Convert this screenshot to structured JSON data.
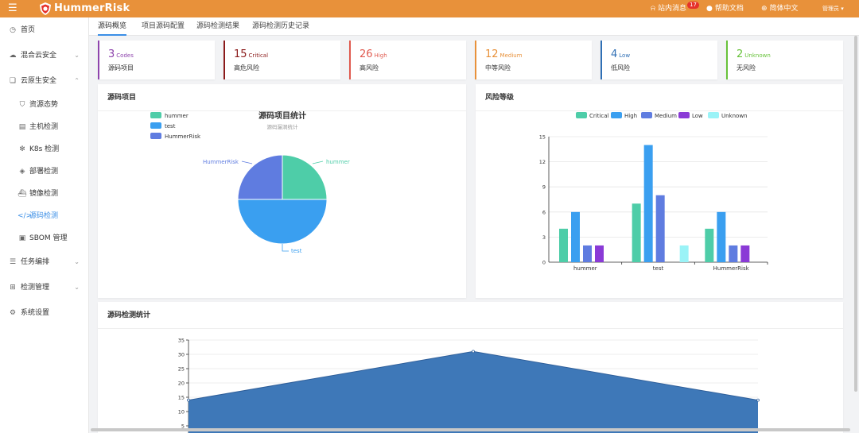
{
  "header": {
    "brand": "HummerRisk",
    "messages_label": "站内消息",
    "messages_count": "17",
    "help_label": "帮助文档",
    "language_label": "简体中文",
    "user_label": "管理员"
  },
  "sidebar": {
    "items": [
      {
        "label": "首页",
        "icon": "clock-icon"
      },
      {
        "label": "混合云安全",
        "icon": "cloud-icon"
      },
      {
        "label": "云原生安全",
        "icon": "cloud-native-icon"
      },
      {
        "label": "资源态势",
        "icon": "shield-icon"
      },
      {
        "label": "主机检测",
        "icon": "server-icon"
      },
      {
        "label": "K8s 检测",
        "icon": "k8s-icon"
      },
      {
        "label": "部署检测",
        "icon": "layers-icon"
      },
      {
        "label": "镜像检测",
        "icon": "image-icon"
      },
      {
        "label": "源码检测",
        "icon": "code-icon"
      },
      {
        "label": "SBOM 管理",
        "icon": "sbom-icon"
      },
      {
        "label": "任务编排",
        "icon": "list-icon"
      },
      {
        "label": "检测管理",
        "icon": "grid-icon"
      },
      {
        "label": "系统设置",
        "icon": "settings-icon"
      }
    ]
  },
  "tabs": [
    "源码概览",
    "项目源码配置",
    "源码检测结果",
    "源码检测历史记录"
  ],
  "stats": [
    {
      "value": "3",
      "unit": "Codes",
      "label": "源码项目",
      "color": "#8e44ad"
    },
    {
      "value": "15",
      "unit": "Critical",
      "label": "高危风险",
      "color": "#8b1a1a"
    },
    {
      "value": "26",
      "unit": "High",
      "label": "高风险",
      "color": "#e05a4f"
    },
    {
      "value": "12",
      "unit": "Medium",
      "label": "中等风险",
      "color": "#e8913a"
    },
    {
      "value": "4",
      "unit": "Low",
      "label": "低风险",
      "color": "#2f6fb5"
    },
    {
      "value": "2",
      "unit": "Unknown",
      "label": "无风险",
      "color": "#67c23a"
    }
  ],
  "panels": {
    "projects": "源码项目",
    "risk": "风险等级",
    "stats": "源码检测统计"
  },
  "chart_data": [
    {
      "type": "pie",
      "title": "源码项目统计",
      "subtitle": "源码漏洞统计",
      "legend": [
        "hummer",
        "test",
        "HummerRisk"
      ],
      "slices": [
        {
          "name": "hummer",
          "value": 1,
          "color": "#4ecda8"
        },
        {
          "name": "test",
          "value": 2,
          "color": "#3a9ff0"
        },
        {
          "name": "HummerRisk",
          "value": 1,
          "color": "#5f7ce0"
        }
      ],
      "slice_labels": [
        "hummer",
        "test",
        "HummerRisk"
      ]
    },
    {
      "type": "bar",
      "categories": [
        "hummer",
        "test",
        "HummerRisk"
      ],
      "series": [
        {
          "name": "Critical",
          "values": [
            4,
            7,
            4
          ],
          "color": "#4ecda8"
        },
        {
          "name": "High",
          "values": [
            6,
            14,
            6
          ],
          "color": "#3a9ff0"
        },
        {
          "name": "Medium",
          "values": [
            2,
            8,
            2
          ],
          "color": "#5f7ce0"
        },
        {
          "name": "Low",
          "values": [
            2,
            0,
            2
          ],
          "color": "#8a3ad6"
        },
        {
          "name": "Unknown",
          "values": [
            0,
            2,
            0
          ],
          "color": "#9af3f7"
        }
      ],
      "ylim": [
        0,
        15
      ],
      "yticks": [
        "0",
        "3",
        "6",
        "9",
        "12",
        "15"
      ],
      "legend_position": "top"
    },
    {
      "type": "area",
      "x": [
        0,
        1,
        2
      ],
      "values": [
        14,
        31,
        14
      ],
      "ylim": [
        5,
        35
      ],
      "yticks": [
        "5",
        "10",
        "15",
        "20",
        "25",
        "30",
        "35"
      ],
      "color": "#3e78b8"
    }
  ]
}
